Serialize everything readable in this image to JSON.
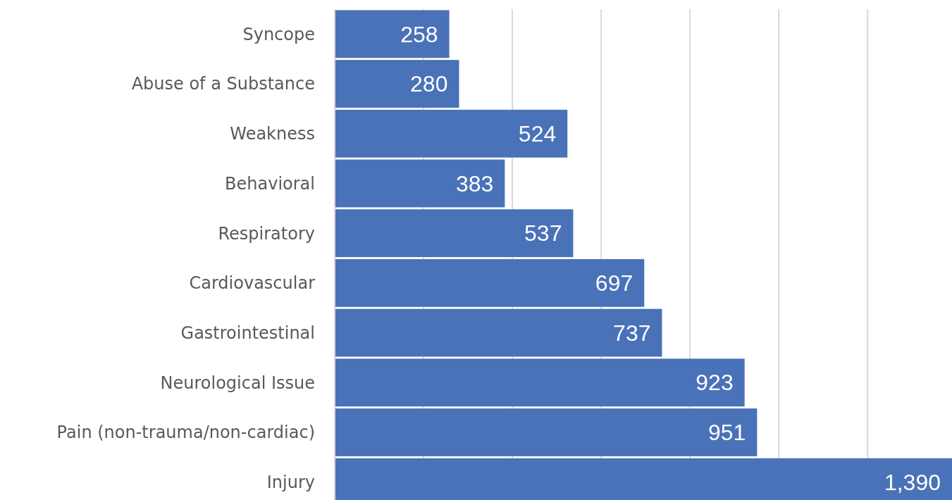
{
  "chart_data": {
    "type": "bar",
    "orientation": "horizontal",
    "categories": [
      "Syncope",
      "Abuse of a Substance",
      "Weakness",
      "Behavioral",
      "Respiratory",
      "Cardiovascular",
      "Gastrointestinal",
      "Neurological Issue",
      "Pain (non-trauma/non-cardiac)",
      "Injury"
    ],
    "values": [
      258,
      280,
      524,
      383,
      537,
      697,
      737,
      923,
      951,
      1390
    ],
    "value_labels": [
      "258",
      "280",
      "524",
      "383",
      "537",
      "697",
      "737",
      "923",
      "951",
      "1,390"
    ],
    "color": "#4a72b8",
    "xlim": [
      0,
      1390
    ],
    "xticks": [
      {
        "value": 200,
        "label": null
      },
      {
        "value": 400,
        "label": null
      },
      {
        "value": 600,
        "label": null
      },
      {
        "value": 800,
        "label": null
      },
      {
        "value": 1000,
        "label": null
      },
      {
        "value": 1200,
        "label": null
      }
    ],
    "grid": "x",
    "tick_labels": "y"
  }
}
